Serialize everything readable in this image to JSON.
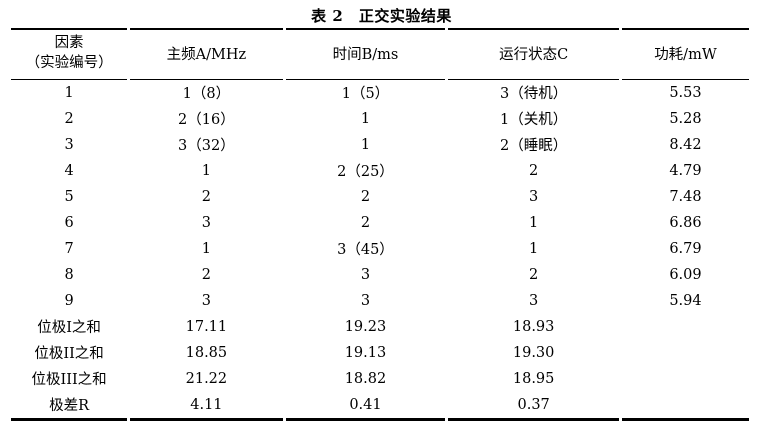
{
  "title": "表 2　正交实验结果",
  "colors": {
    "text": "#000000",
    "rule": "#000000",
    "background": "#ffffff"
  },
  "table": {
    "headers": [
      "因素\n（实验编号）",
      "主频A/MHz",
      "时间B/ms",
      "运行状态C",
      "功耗/mW"
    ],
    "rows": [
      [
        "1",
        "1（8）",
        "1（5）",
        "3（待机）",
        "5.53"
      ],
      [
        "2",
        "2（16）",
        "1",
        "1（关机）",
        "5.28"
      ],
      [
        "3",
        "3（32）",
        "1",
        "2（睡眠）",
        "8.42"
      ],
      [
        "4",
        "1",
        "2（25）",
        "2",
        "4.79"
      ],
      [
        "5",
        "2",
        "2",
        "3",
        "7.48"
      ],
      [
        "6",
        "3",
        "2",
        "1",
        "6.86"
      ],
      [
        "7",
        "1",
        "3（45）",
        "1",
        "6.79"
      ],
      [
        "8",
        "2",
        "3",
        "2",
        "6.09"
      ],
      [
        "9",
        "3",
        "3",
        "3",
        "5.94"
      ],
      [
        "位极I之和",
        "17.11",
        "19.23",
        "18.93",
        ""
      ],
      [
        "位极II之和",
        "18.85",
        "19.13",
        "19.30",
        ""
      ],
      [
        "位极III之和",
        "21.22",
        "18.82",
        "18.95",
        ""
      ],
      [
        "极差R",
        "4.11",
        "0.41",
        "0.37",
        ""
      ]
    ]
  },
  "chart_data": {
    "type": "table",
    "title": "表 2　正交实验结果",
    "columns": [
      "因素（实验编号）",
      "主频A/MHz",
      "时间B/ms",
      "运行状态C",
      "功耗/mW"
    ],
    "rows": [
      [
        "1",
        "1（8）",
        "1（5）",
        "3（待机）",
        5.53
      ],
      [
        "2",
        "2（16）",
        "1",
        "1（关机）",
        5.28
      ],
      [
        "3",
        "3（32）",
        "1",
        "2（睡眠）",
        8.42
      ],
      [
        "4",
        "1",
        "2（25）",
        "2",
        4.79
      ],
      [
        "5",
        "2",
        "2",
        "3",
        7.48
      ],
      [
        "6",
        "3",
        "2",
        "1",
        6.86
      ],
      [
        "7",
        "1",
        "3（45）",
        "1",
        6.79
      ],
      [
        "8",
        "2",
        "3",
        "2",
        6.09
      ],
      [
        "9",
        "3",
        "3",
        "3",
        5.94
      ],
      [
        "位极I之和",
        17.11,
        19.23,
        18.93,
        null
      ],
      [
        "位极II之和",
        18.85,
        19.13,
        19.3,
        null
      ],
      [
        "位极III之和",
        21.22,
        18.82,
        18.95,
        null
      ],
      [
        "极差R",
        4.11,
        0.41,
        0.37,
        null
      ]
    ]
  }
}
